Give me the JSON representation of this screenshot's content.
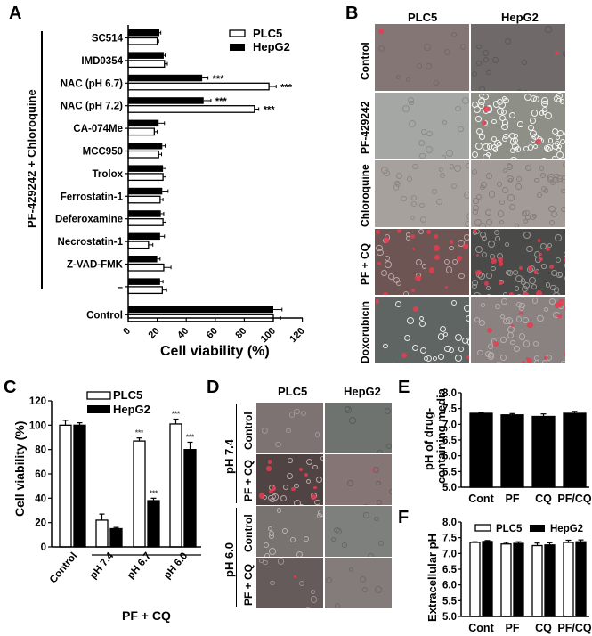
{
  "panels": {
    "A": {
      "letter": "A"
    },
    "B": {
      "letter": "B"
    },
    "C": {
      "letter": "C"
    },
    "D": {
      "letter": "D"
    },
    "E": {
      "letter": "E"
    },
    "F": {
      "letter": "F"
    }
  },
  "panel_a": {
    "group_label": "PF-429242 + Chloroquine",
    "xlabel": "Cell viability (%)",
    "legend": [
      "PLC5",
      "HepG2"
    ]
  },
  "panel_b": {
    "columns": [
      "PLC5",
      "HepG2"
    ],
    "rows": [
      "Control",
      "PF-429242",
      "Chloroquine",
      "PF + CQ",
      "Doxorubicin"
    ]
  },
  "panel_c": {
    "ylabel": "Cell viability (%)",
    "group_label": "PF + CQ",
    "legend": [
      "PLC5",
      "HepG2"
    ]
  },
  "panel_d": {
    "columns": [
      "PLC5",
      "HepG2"
    ],
    "groups": [
      {
        "label": "pH 7.4",
        "rows": [
          "Control",
          "PF + CQ"
        ]
      },
      {
        "label": "pH 6.0",
        "rows": [
          "Control",
          "PF + CQ"
        ]
      }
    ]
  },
  "panel_e": {
    "ylabel_line1": "pH of drug-",
    "ylabel_line2": "containing media"
  },
  "panel_f": {
    "ylabel": "Extracellular pH",
    "legend": [
      "PLC5",
      "HepG2"
    ]
  },
  "chart_data": [
    {
      "panel": "A",
      "type": "bar",
      "orientation": "horizontal",
      "title": "",
      "xlabel": "Cell viability (%)",
      "ylabel": "PF-429242 + Chloroquine",
      "xlim": [
        0,
        120
      ],
      "xticks": [
        0,
        20,
        40,
        60,
        80,
        100,
        120
      ],
      "legend_position": "upper right",
      "categories": [
        "SC514",
        "IMD0354",
        "NAC (pH 6.7)",
        "NAC (pH 7.2)",
        "CA-074Me",
        "MCC950",
        "Trolox",
        "Ferrostatin-1",
        "Deferoxamine",
        "Necrostatin-1",
        "Z-VAD-FMK",
        "–",
        "Control"
      ],
      "series": [
        {
          "name": "HepG2",
          "color": "#000000",
          "values": [
            21.5,
            24.5,
            51,
            52,
            21,
            23.5,
            24,
            23.5,
            22.5,
            22,
            20,
            22,
            100
          ],
          "errors": [
            1,
            1,
            4,
            5,
            4,
            2,
            2,
            4,
            2,
            3,
            2,
            2,
            6
          ]
        },
        {
          "name": "PLC5",
          "color": "#ffffff",
          "values": [
            20,
            25,
            97,
            87,
            18,
            21,
            24,
            22,
            24,
            14,
            24.5,
            23.5,
            100
          ],
          "errors": [
            1,
            2,
            5,
            3,
            2,
            2,
            2,
            2,
            2,
            3,
            5,
            3,
            5
          ]
        }
      ],
      "annotations": [
        {
          "category": "NAC (pH 6.7)",
          "series": "HepG2",
          "text": "***"
        },
        {
          "category": "NAC (pH 6.7)",
          "series": "PLC5",
          "text": "***"
        },
        {
          "category": "NAC (pH 7.2)",
          "series": "HepG2",
          "text": "***"
        },
        {
          "category": "NAC (pH 7.2)",
          "series": "PLC5",
          "text": "***"
        }
      ]
    },
    {
      "panel": "C",
      "type": "bar",
      "title": "",
      "xlabel": "PF + CQ",
      "ylabel": "Cell viability (%)",
      "ylim": [
        0,
        120
      ],
      "yticks": [
        0,
        20,
        40,
        60,
        80,
        100,
        120
      ],
      "legend_position": "upper center",
      "categories": [
        "Control",
        "pH 7.4",
        "pH 6.7",
        "pH 6.0"
      ],
      "series": [
        {
          "name": "PLC5",
          "color": "#ffffff",
          "values": [
            100,
            22,
            87,
            101
          ],
          "errors": [
            4,
            5,
            2.5,
            4
          ]
        },
        {
          "name": "HepG2",
          "color": "#000000",
          "values": [
            100,
            15,
            38,
            80
          ],
          "errors": [
            2,
            1,
            2,
            6
          ]
        }
      ],
      "annotations": [
        {
          "category": "pH 6.7",
          "series": "PLC5",
          "text": "***"
        },
        {
          "category": "pH 6.7",
          "series": "HepG2",
          "text": "***"
        },
        {
          "category": "pH 6.0",
          "series": "PLC5",
          "text": "***"
        },
        {
          "category": "pH 6.0",
          "series": "HepG2",
          "text": "***"
        }
      ]
    },
    {
      "panel": "E",
      "type": "bar",
      "title": "",
      "xlabel": "",
      "ylabel": "pH of drug-containing media",
      "ylim": [
        5.0,
        8.0
      ],
      "yticks": [
        5.0,
        5.5,
        6.0,
        6.5,
        7.0,
        7.5,
        8.0
      ],
      "categories": [
        "Cont",
        "PF",
        "CQ",
        "PF/CQ"
      ],
      "series": [
        {
          "name": "pH",
          "color": "#000000",
          "values": [
            7.35,
            7.3,
            7.25,
            7.35
          ],
          "errors": [
            0.02,
            0.04,
            0.08,
            0.06
          ]
        }
      ]
    },
    {
      "panel": "F",
      "type": "bar",
      "title": "",
      "xlabel": "",
      "ylabel": "Extracellular pH",
      "ylim": [
        5.0,
        8.0
      ],
      "yticks": [
        5.0,
        5.5,
        6.0,
        6.5,
        7.0,
        7.5,
        8.0
      ],
      "legend_position": "top",
      "categories": [
        "Cont",
        "PF",
        "CQ",
        "PF/CQ"
      ],
      "series": [
        {
          "name": "PLC5",
          "color": "#ffffff",
          "values": [
            7.35,
            7.3,
            7.25,
            7.35
          ],
          "errors": [
            0.02,
            0.05,
            0.08,
            0.07
          ]
        },
        {
          "name": "HepG2",
          "color": "#000000",
          "values": [
            7.38,
            7.32,
            7.27,
            7.37
          ],
          "errors": [
            0.03,
            0.05,
            0.07,
            0.06
          ]
        }
      ]
    }
  ]
}
